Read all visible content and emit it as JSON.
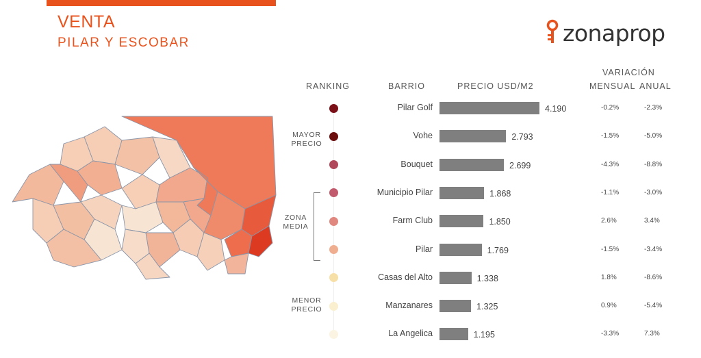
{
  "header": {
    "title": "VENTA",
    "subtitle": "PILAR Y ESCOBAR"
  },
  "logo": {
    "text": "zonaprop",
    "icon": "key-icon",
    "color": "#e8531d"
  },
  "columns": {
    "ranking": "RANKING",
    "barrio": "BARRIO",
    "precio": "PRECIO USD/M2",
    "variacion": "VARIACIÓN",
    "mensual": "MENSUAL",
    "anual": "ANUAL"
  },
  "groups": {
    "mayor_1": "MAYOR",
    "mayor_2": "PRECIO",
    "zona_1": "ZONA",
    "zona_2": "MEDIA",
    "menor_1": "MENOR",
    "menor_2": "PRECIO"
  },
  "colors": {
    "accent": "#e8531d",
    "bar": "#7f7f7f"
  },
  "chart_data": {
    "type": "bar",
    "orientation": "horizontal",
    "categories": [
      "Pilar Golf",
      "Vohe",
      "Bouquet",
      "Municipio Pilar",
      "Farm Club",
      "Pilar",
      "Casas del Alto",
      "Manzanares",
      "La Angelica"
    ],
    "values": [
      4190,
      2793,
      2699,
      1868,
      1850,
      1769,
      1338,
      1325,
      1195
    ],
    "value_labels": [
      "4.190",
      "2.793",
      "2.699",
      "1.868",
      "1.850",
      "1.769",
      "1.338",
      "1.325",
      "1.195"
    ],
    "mensual": [
      "-0.2%",
      "-1.5%",
      "-4.3%",
      "-1.1%",
      "2.6%",
      "-1.5%",
      "1.8%",
      "0.9%",
      "-3.3%"
    ],
    "anual": [
      "-2.3%",
      "-5.0%",
      "-8.8%",
      "-3.0%",
      "3.4%",
      "-3.4%",
      "-8.6%",
      "-5.4%",
      "7.3%"
    ],
    "rank_colors": [
      "#7b1019",
      "#6b0d0d",
      "#b0475a",
      "#c05a6c",
      "#e0877f",
      "#f0ae91",
      "#f7e0a8",
      "#faf0cf",
      "#fcf4e2"
    ]
  }
}
